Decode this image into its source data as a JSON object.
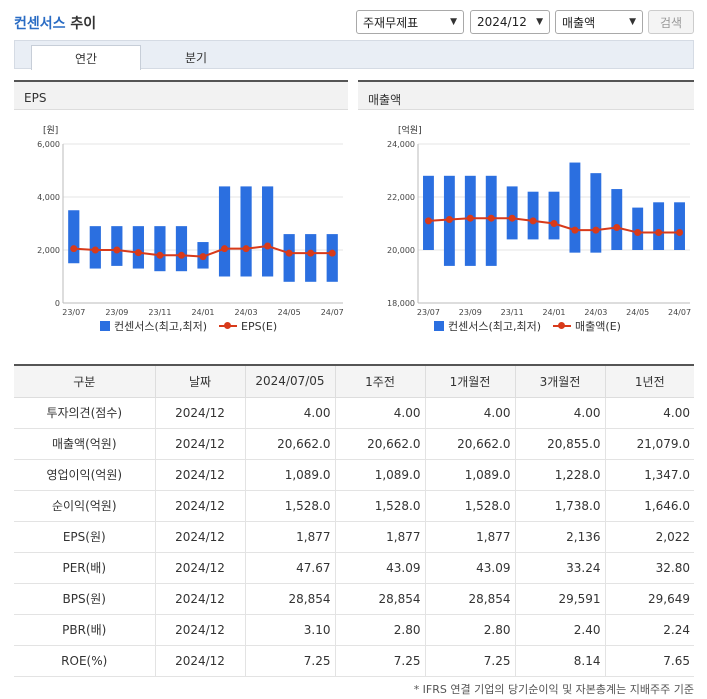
{
  "header": {
    "title_keyword": "컨센서스",
    "title_rest": " 추이"
  },
  "filters": {
    "basis": "주재무제표",
    "period": "2024/12",
    "metric": "매출액",
    "search_label": "검색"
  },
  "tabs": [
    {
      "label": "연간"
    },
    {
      "label": "분기"
    }
  ],
  "colors": {
    "bar": "#2b6fe0",
    "line": "#d83a1a"
  },
  "chart_data": [
    {
      "type": "bar",
      "title": "EPS",
      "unit_label": "[원]",
      "x": [
        "23/07",
        "23/08",
        "23/09",
        "23/10",
        "23/11",
        "23/12",
        "24/01",
        "24/02",
        "24/03",
        "24/04",
        "24/05",
        "24/06",
        "24/07"
      ],
      "xtick_labels": [
        "23/07",
        "23/09",
        "23/11",
        "24/01",
        "24/03",
        "24/05",
        "24/07"
      ],
      "ylim": [
        0,
        6000
      ],
      "yticks": [
        0,
        2000,
        4000,
        6000
      ],
      "ytick_labels": [
        "0",
        "2,000",
        "4,000",
        "6,000"
      ],
      "series": [
        {
          "name": "컨센서스(최고,최저)",
          "kind": "range",
          "low": [
            1500,
            1300,
            1400,
            1300,
            1200,
            1200,
            1300,
            1000,
            1000,
            1000,
            800,
            800,
            800
          ],
          "high": [
            3500,
            2900,
            2900,
            2900,
            2900,
            2900,
            2300,
            4400,
            4400,
            4400,
            2600,
            2600,
            2600
          ]
        },
        {
          "name": "EPS(E)",
          "kind": "line",
          "values": [
            2050,
            2000,
            2000,
            1900,
            1800,
            1800,
            1750,
            2050,
            2050,
            2150,
            1880,
            1880,
            1880
          ]
        }
      ]
    },
    {
      "type": "bar",
      "title": "매출액",
      "unit_label": "[억원]",
      "x": [
        "23/07",
        "23/08",
        "23/09",
        "23/10",
        "23/11",
        "23/12",
        "24/01",
        "24/02",
        "24/03",
        "24/04",
        "24/05",
        "24/06",
        "24/07"
      ],
      "xtick_labels": [
        "23/07",
        "23/09",
        "23/11",
        "24/01",
        "24/03",
        "24/05",
        "24/07"
      ],
      "ylim": [
        18000,
        24000
      ],
      "yticks": [
        18000,
        20000,
        22000,
        24000
      ],
      "ytick_labels": [
        "18,000",
        "20,000",
        "22,000",
        "24,000"
      ],
      "series": [
        {
          "name": "컨센서스(최고,최저)",
          "kind": "range",
          "low": [
            20000,
            19400,
            19400,
            19400,
            20400,
            20400,
            20400,
            19900,
            19900,
            20000,
            20000,
            20000,
            20000
          ],
          "high": [
            22800,
            22800,
            22800,
            22800,
            22400,
            22200,
            22200,
            23300,
            22900,
            22300,
            21600,
            21800,
            21800
          ]
        },
        {
          "name": "매출액(E)",
          "kind": "line",
          "values": [
            21100,
            21150,
            21200,
            21200,
            21200,
            21100,
            21000,
            20750,
            20750,
            20850,
            20660,
            20660,
            20660
          ]
        }
      ]
    }
  ],
  "table": {
    "headers": [
      "구분",
      "날짜",
      "2024/07/05",
      "1주전",
      "1개월전",
      "3개월전",
      "1년전"
    ],
    "rows": [
      [
        "투자의견(점수)",
        "2024/12",
        "4.00",
        "4.00",
        "4.00",
        "4.00",
        "4.00"
      ],
      [
        "매출액(억원)",
        "2024/12",
        "20,662.0",
        "20,662.0",
        "20,662.0",
        "20,855.0",
        "21,079.0"
      ],
      [
        "영업이익(억원)",
        "2024/12",
        "1,089.0",
        "1,089.0",
        "1,089.0",
        "1,228.0",
        "1,347.0"
      ],
      [
        "순이익(억원)",
        "2024/12",
        "1,528.0",
        "1,528.0",
        "1,528.0",
        "1,738.0",
        "1,646.0"
      ],
      [
        "EPS(원)",
        "2024/12",
        "1,877",
        "1,877",
        "1,877",
        "2,136",
        "2,022"
      ],
      [
        "PER(배)",
        "2024/12",
        "47.67",
        "43.09",
        "43.09",
        "33.24",
        "32.80"
      ],
      [
        "BPS(원)",
        "2024/12",
        "28,854",
        "28,854",
        "28,854",
        "29,591",
        "29,649"
      ],
      [
        "PBR(배)",
        "2024/12",
        "3.10",
        "2.80",
        "2.80",
        "2.40",
        "2.24"
      ],
      [
        "ROE(%)",
        "2024/12",
        "7.25",
        "7.25",
        "7.25",
        "8.14",
        "7.65"
      ]
    ]
  },
  "footnote": "* IFRS 연결 기업의 당기순이익 및 자본총계는 지배주주 기준"
}
